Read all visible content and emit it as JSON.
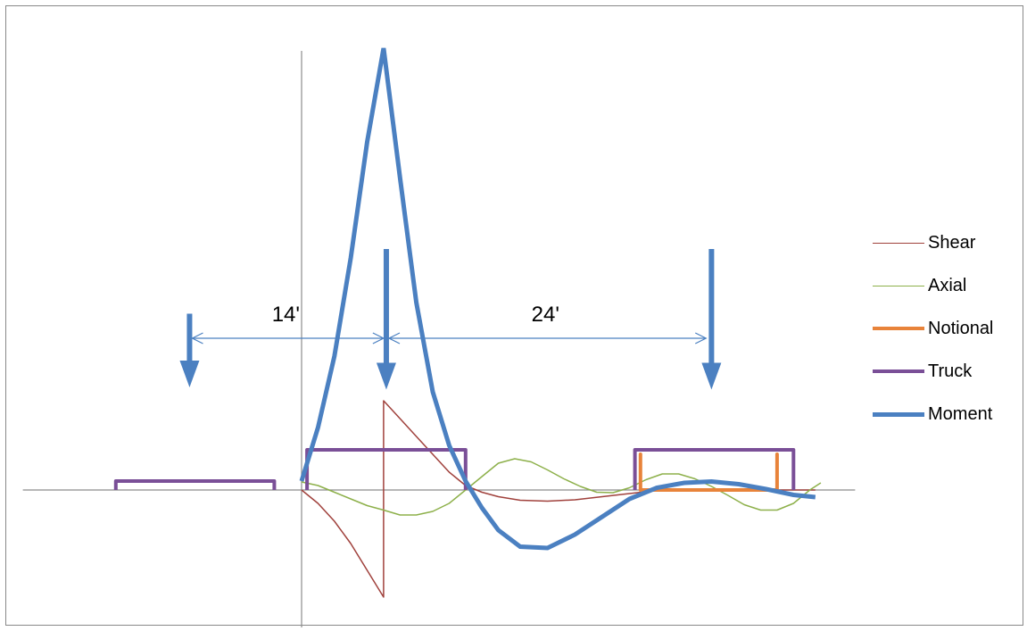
{
  "chart_data": {
    "type": "line",
    "title": "",
    "xlabel": "",
    "ylabel": "",
    "grid": false,
    "legend": "right",
    "xlim": [
      -51,
      99
    ],
    "ylim": [
      -26,
      100
    ],
    "series": [
      {
        "name": "Shear",
        "color": "#A0413C",
        "width": 1.5,
        "x": [
          0,
          3,
          6,
          9,
          12,
          15,
          15,
          18,
          21,
          24,
          27,
          30,
          33,
          36,
          40,
          45,
          50,
          55,
          60,
          65,
          70,
          75,
          80,
          85,
          88,
          91,
          94
        ],
        "y": [
          0,
          -3,
          -7,
          -12,
          -18,
          -24,
          20,
          16,
          12,
          8,
          4,
          1,
          -0.5,
          -1.5,
          -2.3,
          -2.5,
          -2.2,
          -1.5,
          -0.8,
          -0.1,
          0,
          0,
          0,
          0,
          0,
          0,
          0
        ]
      },
      {
        "name": "Axial",
        "color": "#8DB04A",
        "width": 1.5,
        "x": [
          0,
          3,
          6,
          9,
          12,
          15,
          18,
          21,
          24,
          27,
          30,
          33,
          36,
          39,
          42,
          45,
          48,
          51,
          54,
          57,
          60,
          63,
          66,
          69,
          72,
          75,
          78,
          81,
          84,
          87,
          90,
          93,
          95
        ],
        "y": [
          1.8,
          1,
          -0.5,
          -2,
          -3.5,
          -4.5,
          -5.6,
          -5.6,
          -4.8,
          -3,
          0,
          3,
          6,
          7,
          6.3,
          4.5,
          2.5,
          0.8,
          -0.5,
          -0.6,
          0.5,
          2.3,
          3.6,
          3.6,
          2.5,
          0.8,
          -1.2,
          -3.3,
          -4.5,
          -4.5,
          -3,
          0,
          1.6
        ]
      },
      {
        "name": "Notional",
        "color": "#E8833A",
        "width": 4,
        "x": [
          62,
          62,
          62,
          87,
          87,
          87
        ],
        "y": [
          0,
          8,
          0,
          0,
          8,
          0
        ]
      },
      {
        "name": "Truck",
        "color": "#7A4F97",
        "width": 4,
        "x": [
          -34,
          -34,
          -5,
          -5,
          null,
          1,
          1,
          30,
          30,
          null,
          61,
          61,
          90,
          90
        ],
        "y": [
          0,
          2,
          2,
          0,
          null,
          0,
          9,
          9,
          0,
          null,
          0,
          9,
          9,
          0
        ]
      },
      {
        "name": "Moment",
        "color": "#4B80C1",
        "width": 5,
        "x": [
          0,
          3,
          6,
          9,
          12,
          15,
          18,
          21,
          24,
          27,
          30,
          33,
          36,
          40,
          45,
          50,
          55,
          60,
          65,
          70,
          75,
          80,
          85,
          90,
          94
        ],
        "y": [
          2,
          14,
          30,
          52,
          78,
          99,
          70,
          42,
          22,
          10,
          2,
          -4,
          -9,
          -12.7,
          -13,
          -10,
          -6,
          -2,
          0.5,
          1.6,
          1.9,
          1.3,
          0.2,
          -1.1,
          -1.6
        ]
      }
    ],
    "annotations": {
      "load_arrows": [
        {
          "x": -20.5,
          "y_top": 39.5,
          "y_tip": 23
        },
        {
          "x": 15.5,
          "y_top": 54,
          "y_tip": 22.5
        },
        {
          "x": 75,
          "y_top": 54,
          "y_tip": 22.5
        }
      ],
      "dimensions": [
        {
          "label": "14'",
          "x1": -20,
          "x2": 15,
          "y": 34
        },
        {
          "label": "24'",
          "x1": 16,
          "x2": 74,
          "y": 34
        }
      ]
    }
  }
}
